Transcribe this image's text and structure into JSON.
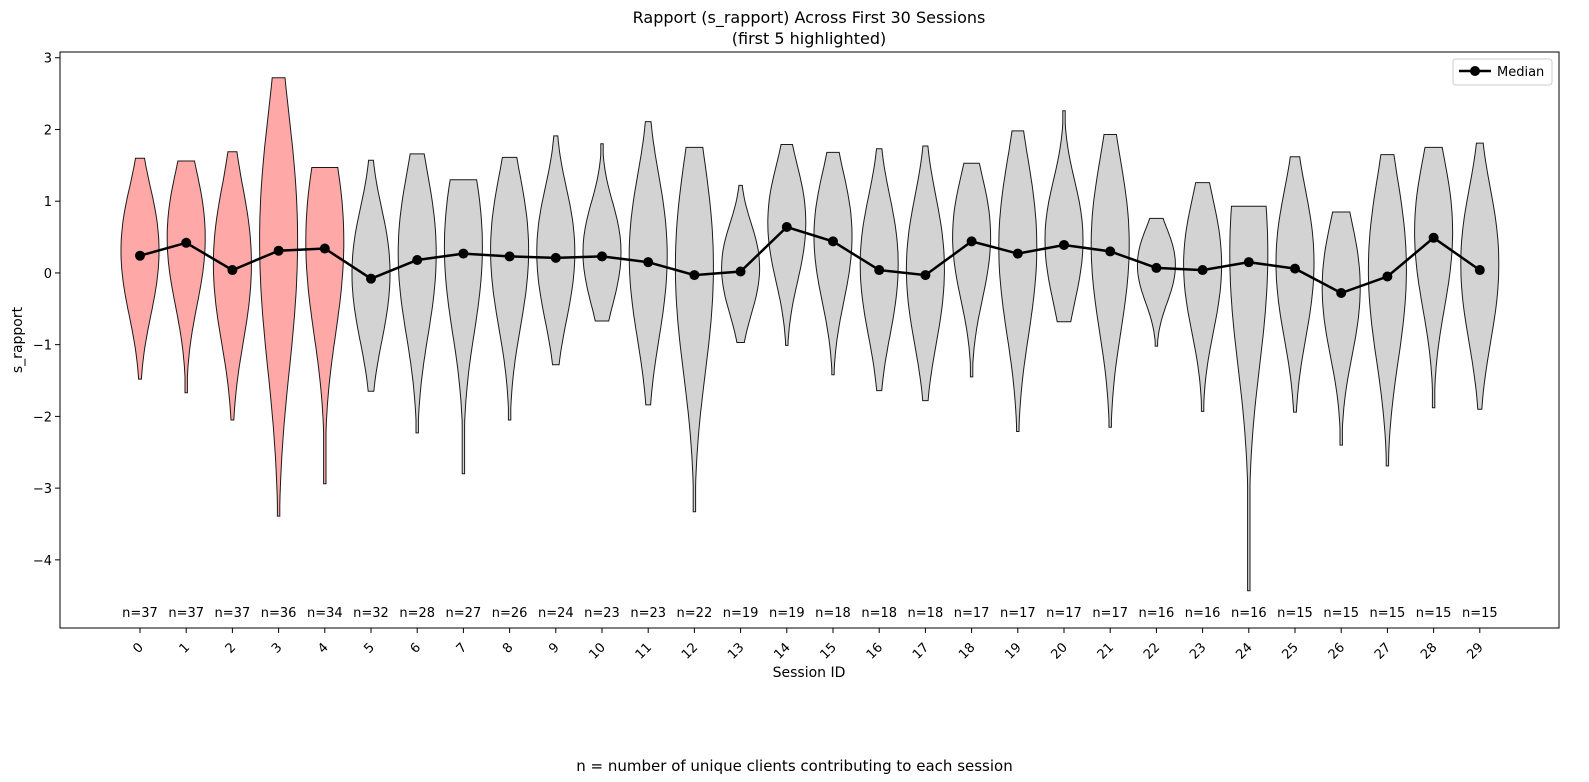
{
  "chart_data": {
    "type": "violin",
    "title": "Rapport (s_rapport) Across First 30 Sessions",
    "subtitle": "(first 5 highlighted)",
    "xlabel": "Session ID",
    "ylabel": "s_rapport",
    "ylim": [
      -4.95,
      3.08
    ],
    "yticks": [
      3,
      2,
      1,
      0,
      -1,
      -2,
      -3,
      -4
    ],
    "ytick_labels": [
      "3",
      "2",
      "1",
      "0",
      "−1",
      "−2",
      "−3",
      "−4"
    ],
    "categories": [
      "0",
      "1",
      "2",
      "3",
      "4",
      "5",
      "6",
      "7",
      "8",
      "9",
      "10",
      "11",
      "12",
      "13",
      "14",
      "15",
      "16",
      "17",
      "18",
      "19",
      "20",
      "21",
      "22",
      "23",
      "24",
      "25",
      "26",
      "27",
      "28",
      "29"
    ],
    "highlight_count": 5,
    "highlight_color": "#ffa8a8",
    "default_color": "#d3d3d3",
    "edge_color": "#1a1a1a",
    "median_color": "#000000",
    "medians": [
      0.24,
      0.42,
      0.04,
      0.31,
      0.34,
      -0.08,
      0.18,
      0.27,
      0.23,
      0.21,
      0.23,
      0.15,
      -0.03,
      0.02,
      0.64,
      0.44,
      0.04,
      -0.03,
      0.44,
      0.27,
      0.39,
      0.3,
      0.07,
      0.04,
      0.15,
      0.06,
      -0.28,
      -0.05,
      0.49,
      0.04
    ],
    "mins": [
      -1.48,
      -1.67,
      -2.05,
      -3.39,
      -2.94,
      -1.65,
      -2.23,
      -2.8,
      -2.05,
      -1.28,
      -0.67,
      -1.84,
      -3.33,
      -0.97,
      -1.01,
      -1.42,
      -1.64,
      -1.78,
      -1.45,
      -2.21,
      -0.68,
      -2.15,
      -1.02,
      -1.93,
      -4.43,
      -1.94,
      -2.4,
      -2.69,
      -1.88,
      -1.9
    ],
    "maxs": [
      1.6,
      1.56,
      1.69,
      2.72,
      1.47,
      1.57,
      1.66,
      1.3,
      1.61,
      1.91,
      1.8,
      2.11,
      1.75,
      1.22,
      1.79,
      1.68,
      1.73,
      1.77,
      1.53,
      1.98,
      2.26,
      1.93,
      0.76,
      1.26,
      0.93,
      1.62,
      0.85,
      1.65,
      1.75,
      1.81
    ],
    "sample_counts": [
      "n=37",
      "n=37",
      "n=37",
      "n=36",
      "n=34",
      "n=32",
      "n=28",
      "n=27",
      "n=26",
      "n=24",
      "n=23",
      "n=23",
      "n=22",
      "n=19",
      "n=19",
      "n=18",
      "n=18",
      "n=18",
      "n=17",
      "n=17",
      "n=17",
      "n=17",
      "n=16",
      "n=16",
      "n=16",
      "n=15",
      "n=15",
      "n=15",
      "n=15",
      "n=15"
    ],
    "legend": {
      "label": "Median",
      "position": "top-right"
    }
  },
  "caption": "n = number of unique clients contributing to each session"
}
